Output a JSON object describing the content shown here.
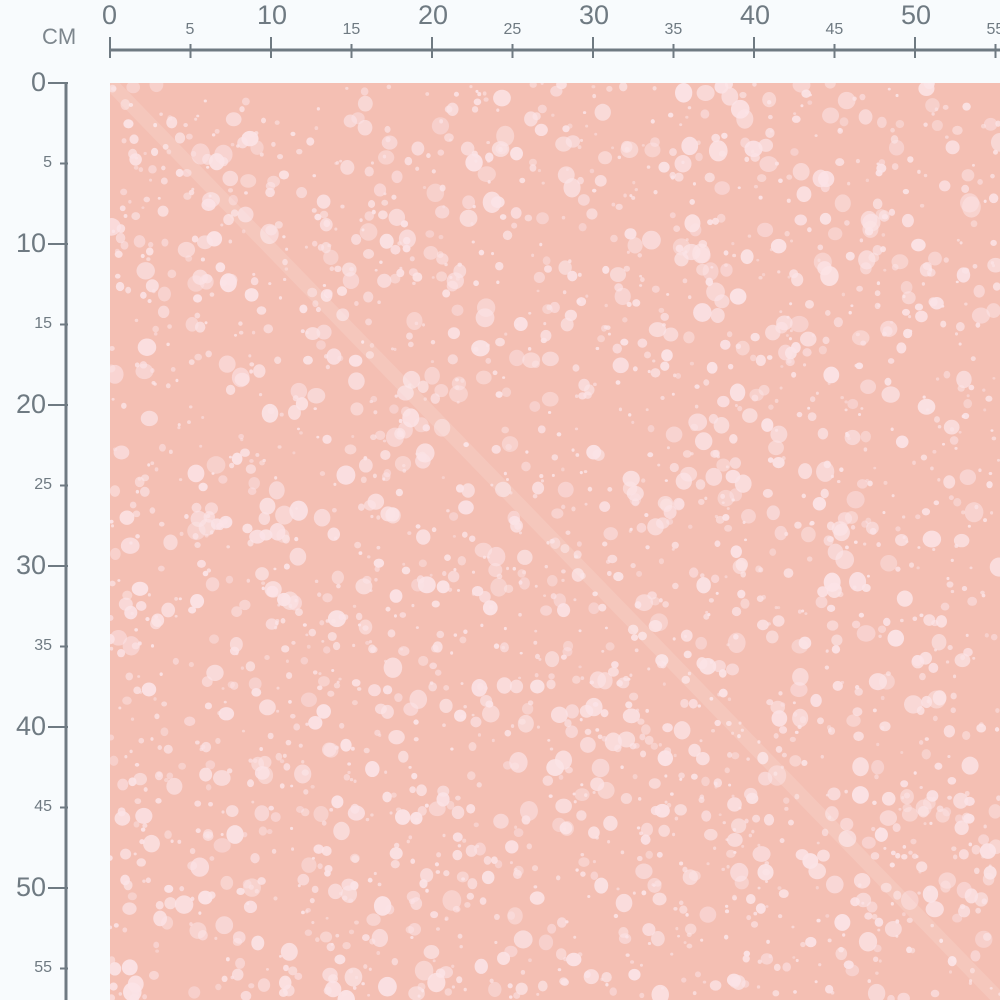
{
  "ruler": {
    "unit": "CM",
    "top_labels": [
      "0",
      "5",
      "10",
      "15",
      "20",
      "25",
      "30",
      "35",
      "40",
      "45",
      "50",
      "55"
    ],
    "left_labels": [
      "0",
      "5",
      "10",
      "15",
      "20",
      "25",
      "30",
      "35",
      "40",
      "45",
      "50",
      "55"
    ]
  },
  "fabric": {
    "pattern": "white dots on pink",
    "colors": {
      "background": "#f4bfb3",
      "dots": "#fbe3e6",
      "ruler": "#6f7a82"
    }
  }
}
